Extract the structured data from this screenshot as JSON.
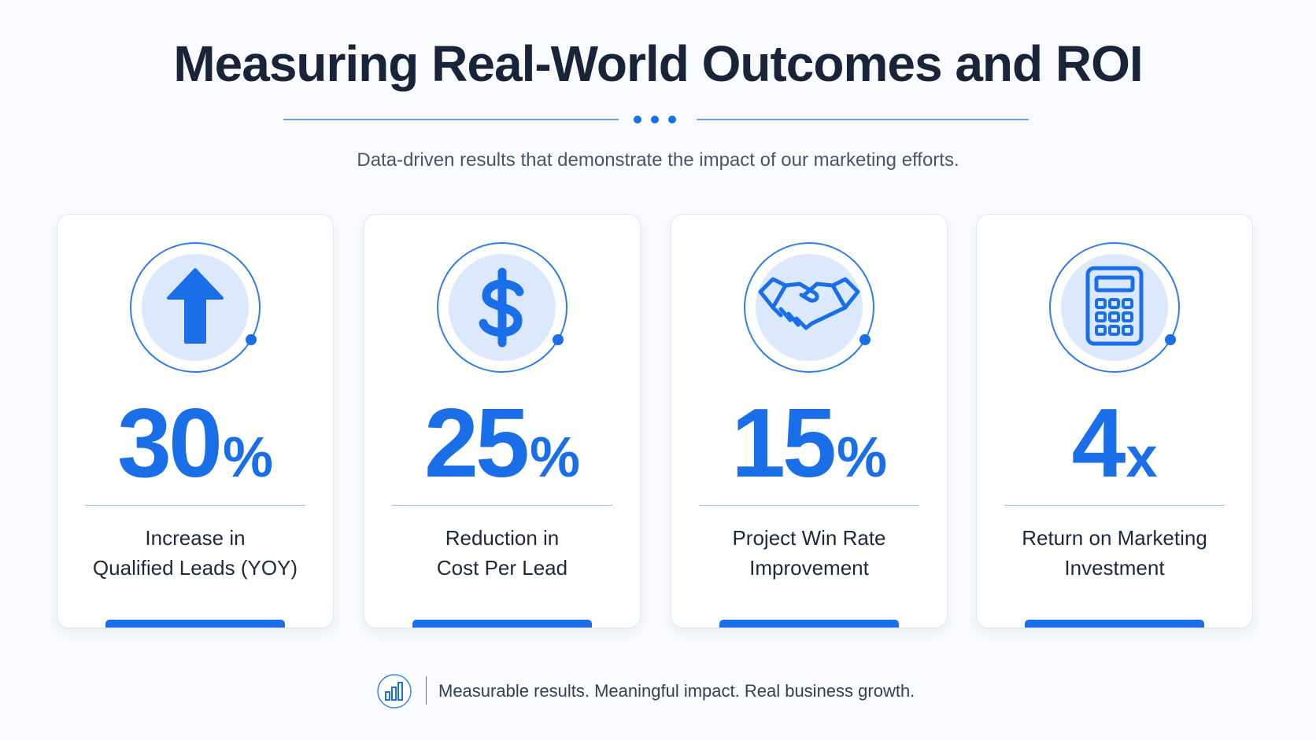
{
  "header": {
    "title": "Measuring Real-World Outcomes and ROI",
    "subtitle": "Data-driven results that demonstrate the impact of our marketing efforts."
  },
  "cards": [
    {
      "value": "30",
      "unit": "%",
      "label": [
        "Increase in",
        "Qualified Leads (YOY)"
      ]
    },
    {
      "value": "25",
      "unit": "%",
      "label": [
        "Reduction in",
        "Cost Per Lead"
      ]
    },
    {
      "value": "15",
      "unit": "%",
      "label": [
        "Project Win Rate",
        "Improvement"
      ]
    },
    {
      "value": "4",
      "unit": "x",
      "label": [
        "Return on Marketing",
        "Investment"
      ]
    }
  ],
  "footer": {
    "text": "Measurable results. Meaningful impact. Real business growth."
  }
}
